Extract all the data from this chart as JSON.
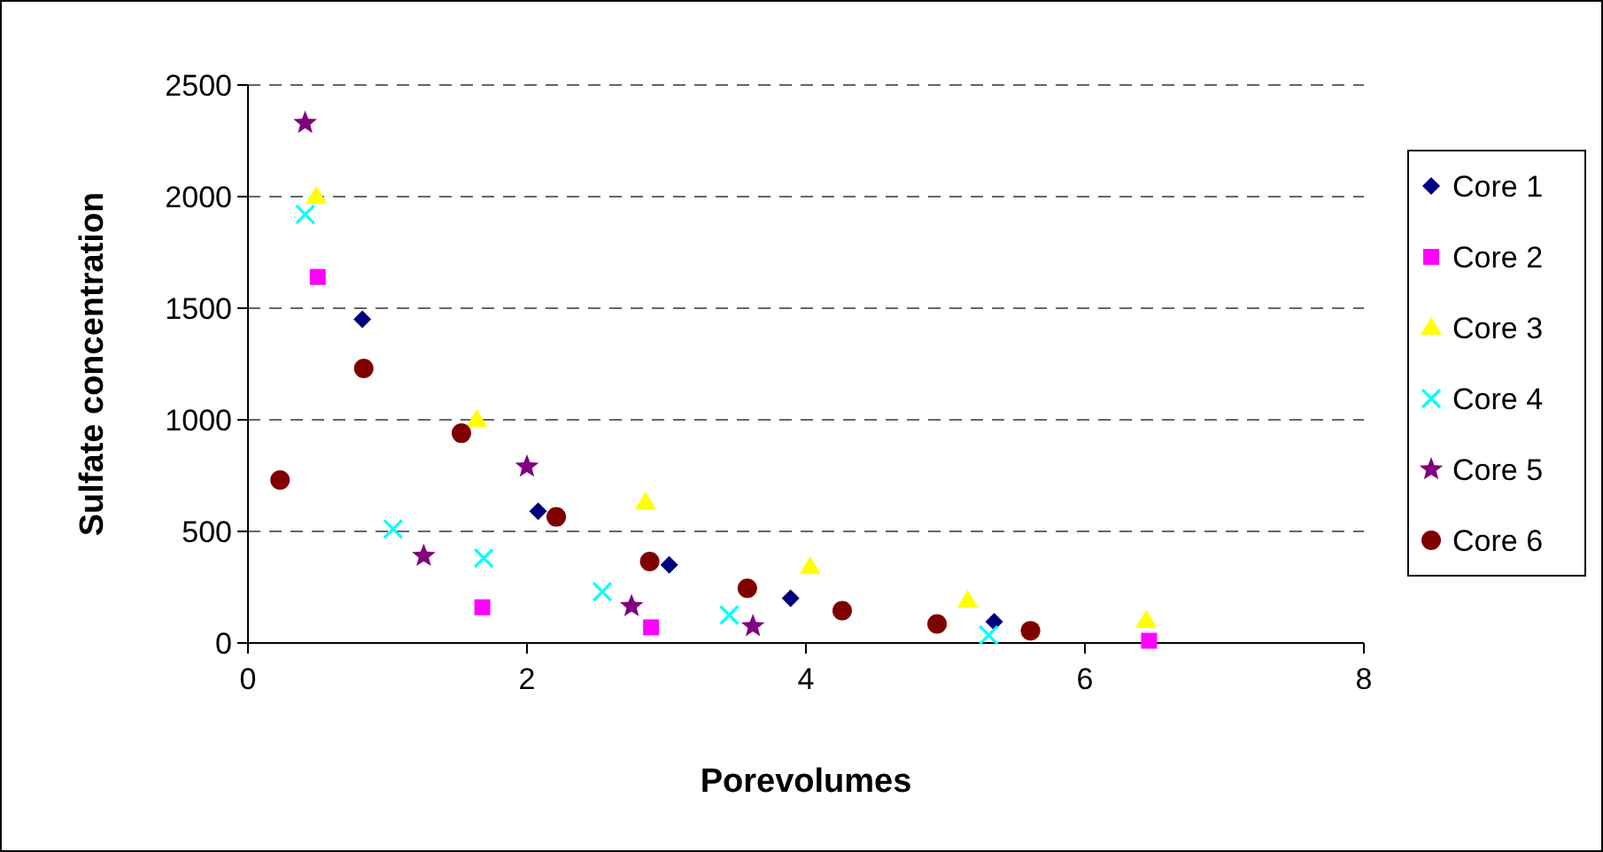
{
  "chart_data": {
    "type": "scatter",
    "xlabel": "Porevolumes",
    "ylabel": "Sulfate concentration",
    "xlim": [
      0,
      8
    ],
    "xticks": [
      0,
      2,
      4,
      6,
      8
    ],
    "ylim": [
      0,
      2500
    ],
    "yticks": [
      0,
      500,
      1000,
      1500,
      2000,
      2500
    ],
    "grid": "y",
    "legend": "right",
    "series": [
      {
        "name": "Core 1",
        "color": "#000080",
        "marker": "diamond",
        "x": [
          0.82,
          2.08,
          3.02,
          3.89,
          5.35
        ],
        "values": [
          1450,
          590,
          350,
          200,
          95
        ]
      },
      {
        "name": "Core 2",
        "color": "#ff00ff",
        "marker": "square",
        "x": [
          0.5,
          1.68,
          2.89,
          6.46
        ],
        "values": [
          1640,
          160,
          70,
          10
        ]
      },
      {
        "name": "Core 3",
        "color": "#ffff00",
        "marker": "triangle",
        "x": [
          0.49,
          1.64,
          2.85,
          4.03,
          5.16,
          6.44
        ],
        "values": [
          2000,
          1000,
          630,
          340,
          190,
          100
        ]
      },
      {
        "name": "Core 4",
        "color": "#00ffff",
        "marker": "cross",
        "x": [
          0.41,
          1.04,
          1.69,
          2.54,
          3.45,
          5.31
        ],
        "values": [
          1920,
          510,
          380,
          230,
          125,
          35
        ]
      },
      {
        "name": "Core 5",
        "color": "#800080",
        "marker": "star",
        "x": [
          0.41,
          1.26,
          2.0,
          2.75,
          3.62
        ],
        "values": [
          2330,
          390,
          790,
          165,
          75
        ]
      },
      {
        "name": "Core 6",
        "color": "#800000",
        "marker": "circle",
        "x": [
          0.23,
          0.83,
          1.53,
          2.21,
          2.88,
          3.58,
          4.26,
          4.94,
          5.61
        ],
        "values": [
          730,
          1230,
          940,
          565,
          365,
          245,
          145,
          85,
          55
        ]
      }
    ]
  }
}
